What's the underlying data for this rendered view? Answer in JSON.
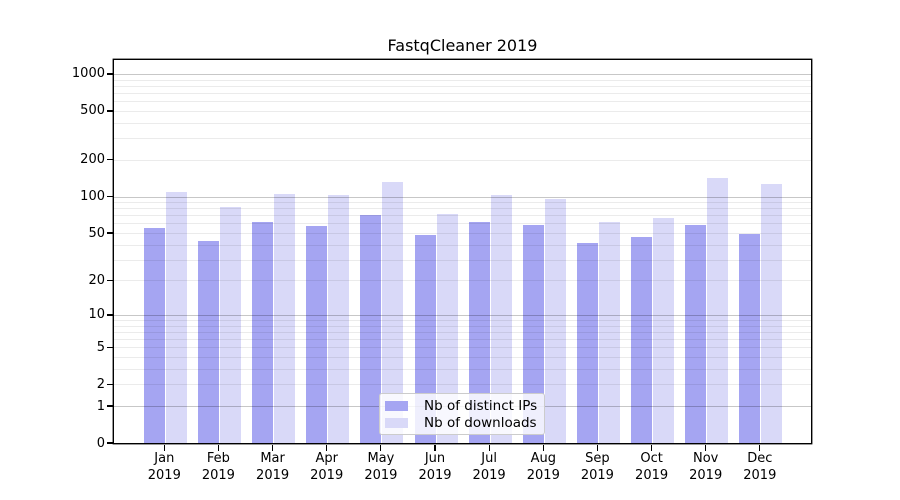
{
  "title": "FastqCleaner 2019",
  "chart_data": {
    "type": "bar",
    "title": "FastqCleaner 2019",
    "categories": [
      "Jan 2019",
      "Feb 2019",
      "Mar 2019",
      "Apr 2019",
      "May 2019",
      "Jun 2019",
      "Jul 2019",
      "Aug 2019",
      "Sep 2019",
      "Oct 2019",
      "Nov 2019",
      "Dec 2019"
    ],
    "month_labels": [
      "Jan",
      "Feb",
      "Mar",
      "Apr",
      "May",
      "Jun",
      "Jul",
      "Aug",
      "Sep",
      "Oct",
      "Nov",
      "Dec"
    ],
    "year_label": "2019",
    "series": [
      {
        "name": "Nb of distinct IPs",
        "color": "#a5a5f2",
        "values": [
          55,
          43,
          62,
          57,
          70,
          48,
          62,
          58,
          41,
          46,
          58,
          49
        ]
      },
      {
        "name": "Nb of downloads",
        "color": "#d9d9f8",
        "values": [
          109,
          82,
          105,
          103,
          131,
          72,
          102,
          95,
          62,
          67,
          142,
          127
        ]
      }
    ],
    "yscale": "log10(x+1)",
    "y_tick_labels": [
      0,
      1,
      2,
      5,
      10,
      20,
      50,
      100,
      200,
      500,
      1000
    ],
    "major_grid_values": [
      1,
      10,
      100,
      1000
    ],
    "minor_grid_mantissas": [
      2,
      3,
      4,
      5,
      6,
      7,
      8,
      9
    ],
    "ylim": [
      0,
      1300
    ],
    "xlabel": "",
    "ylabel": "",
    "grid": "on",
    "legend_position": "lower-center"
  }
}
